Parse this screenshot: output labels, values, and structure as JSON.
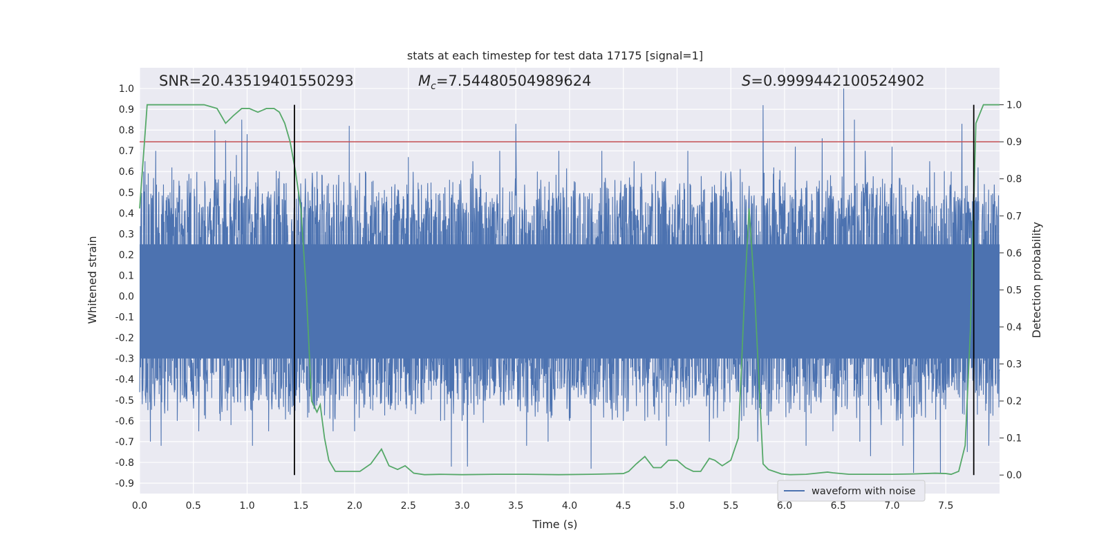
{
  "chart_data": {
    "type": "line",
    "title": "stats at each timestep for test data 17175 [signal=1]",
    "xlabel": "Time (s)",
    "ylabel_left": "Whitened strain",
    "ylabel_right": "Detection probability",
    "xlim": [
      0.0,
      8.0
    ],
    "ylim_left": [
      -0.95,
      1.1
    ],
    "ylim_right": [
      -0.05,
      1.1
    ],
    "xticks": [
      "0.0",
      "0.5",
      "1.0",
      "1.5",
      "2.0",
      "2.5",
      "3.0",
      "3.5",
      "4.0",
      "4.5",
      "5.0",
      "5.5",
      "6.0",
      "6.5",
      "7.0",
      "7.5"
    ],
    "yticks_left": [
      "1.0",
      "0.9",
      "0.8",
      "0.7",
      "0.6",
      "0.5",
      "0.4",
      "0.3",
      "0.2",
      "0.1",
      "0.0",
      "-0.1",
      "-0.2",
      "-0.3",
      "-0.4",
      "-0.5",
      "-0.6",
      "-0.7",
      "-0.8",
      "-0.9"
    ],
    "yticks_right": [
      "1.0",
      "0.9",
      "0.8",
      "0.7",
      "0.6",
      "0.5",
      "0.4",
      "0.3",
      "0.2",
      "0.1",
      "0.0"
    ],
    "grid": true,
    "legend_position": "lower-right",
    "annotations": {
      "snr": "SNR=20.43519401550293",
      "mc_symbol": "M",
      "mc_sub": "c",
      "mc_value": "=7.54480504989624",
      "s_symbol": "S",
      "s_value": "=0.9999442100524902"
    },
    "series": [
      {
        "name": "waveform with noise",
        "color": "#4c72b0",
        "axis": "left",
        "kind": "noise",
        "x_range": [
          0.0,
          8.0
        ],
        "envelope_low": [
          -0.45,
          -0.62
        ],
        "envelope_high": [
          0.45,
          0.62
        ],
        "peaks": [
          [
            0.05,
            0.65
          ],
          [
            0.1,
            -0.7
          ],
          [
            0.15,
            0.7
          ],
          [
            0.2,
            -0.72
          ],
          [
            0.3,
            0.62
          ],
          [
            0.35,
            -0.6
          ],
          [
            0.55,
            -0.65
          ],
          [
            0.7,
            0.8
          ],
          [
            0.75,
            -0.6
          ],
          [
            0.8,
            0.75
          ],
          [
            0.85,
            -0.62
          ],
          [
            0.9,
            0.68
          ],
          [
            0.95,
            0.85
          ],
          [
            1.0,
            0.78
          ],
          [
            1.05,
            -0.72
          ],
          [
            1.1,
            0.6
          ],
          [
            1.2,
            -0.65
          ],
          [
            1.3,
            0.6
          ],
          [
            1.4,
            -0.57
          ],
          [
            1.65,
            0.6
          ],
          [
            1.8,
            -0.65
          ],
          [
            1.9,
            0.55
          ],
          [
            1.95,
            0.82
          ],
          [
            2.0,
            -0.65
          ],
          [
            2.1,
            0.6
          ],
          [
            2.5,
            0.67
          ],
          [
            2.8,
            -0.6
          ],
          [
            2.9,
            -0.82
          ],
          [
            3.0,
            -0.6
          ],
          [
            3.05,
            -0.82
          ],
          [
            3.1,
            0.65
          ],
          [
            3.35,
            0.7
          ],
          [
            3.5,
            0.83
          ],
          [
            3.6,
            -0.72
          ],
          [
            3.7,
            0.6
          ],
          [
            3.8,
            -0.7
          ],
          [
            3.9,
            0.7
          ],
          [
            4.0,
            -0.6
          ],
          [
            4.2,
            -0.83
          ],
          [
            4.3,
            0.7
          ],
          [
            4.5,
            -0.6
          ],
          [
            4.6,
            0.65
          ],
          [
            4.7,
            -0.6
          ],
          [
            4.8,
            0.6
          ],
          [
            4.9,
            -0.72
          ],
          [
            5.1,
            0.7
          ],
          [
            5.3,
            -0.7
          ],
          [
            5.5,
            0.6
          ],
          [
            5.6,
            -0.6
          ],
          [
            5.75,
            -0.7
          ],
          [
            5.8,
            0.92
          ],
          [
            5.85,
            -0.62
          ],
          [
            5.9,
            0.62
          ],
          [
            6.1,
            0.72
          ],
          [
            6.2,
            -0.72
          ],
          [
            6.35,
            0.76
          ],
          [
            6.45,
            -0.65
          ],
          [
            6.55,
            1.0
          ],
          [
            6.65,
            0.85
          ],
          [
            6.7,
            -0.7
          ],
          [
            6.75,
            0.7
          ],
          [
            6.8,
            -0.77
          ],
          [
            6.9,
            -0.62
          ],
          [
            7.0,
            0.72
          ],
          [
            7.1,
            -0.72
          ],
          [
            7.2,
            -0.85
          ],
          [
            7.35,
            0.65
          ],
          [
            7.45,
            -0.85
          ],
          [
            7.55,
            0.6
          ],
          [
            7.65,
            0.83
          ],
          [
            7.7,
            -0.75
          ],
          [
            7.8,
            0.62
          ],
          [
            7.9,
            -0.72
          ]
        ]
      },
      {
        "name": "",
        "color": "#55a868",
        "axis": "right",
        "kind": "line",
        "x": [
          0.0,
          0.07,
          0.15,
          0.3,
          0.45,
          0.6,
          0.72,
          0.8,
          0.87,
          0.95,
          1.02,
          1.1,
          1.18,
          1.25,
          1.3,
          1.35,
          1.4,
          1.45,
          1.5,
          1.55,
          1.6,
          1.65,
          1.68,
          1.72,
          1.76,
          1.82,
          1.88,
          1.95,
          2.05,
          2.15,
          2.25,
          2.32,
          2.4,
          2.47,
          2.55,
          2.65,
          2.8,
          3.0,
          3.3,
          3.6,
          3.9,
          4.2,
          4.5,
          4.55,
          4.62,
          4.7,
          4.78,
          4.85,
          4.92,
          5.0,
          5.08,
          5.15,
          5.22,
          5.3,
          5.35,
          5.42,
          5.5,
          5.57,
          5.63,
          5.67,
          5.72,
          5.8,
          5.85,
          5.9,
          5.97,
          6.05,
          6.2,
          6.4,
          6.45,
          6.6,
          6.8,
          7.0,
          7.2,
          7.4,
          7.5,
          7.55,
          7.62,
          7.68,
          7.73,
          7.78,
          7.85,
          7.92,
          8.0
        ],
        "y": [
          0.72,
          1.0,
          1.0,
          1.0,
          1.0,
          1.0,
          0.99,
          0.95,
          0.97,
          0.99,
          0.99,
          0.98,
          0.99,
          0.99,
          0.98,
          0.95,
          0.9,
          0.82,
          0.72,
          0.5,
          0.2,
          0.17,
          0.19,
          0.1,
          0.04,
          0.01,
          0.01,
          0.01,
          0.01,
          0.03,
          0.07,
          0.025,
          0.015,
          0.025,
          0.005,
          0.001,
          0.002,
          0.001,
          0.002,
          0.002,
          0.001,
          0.002,
          0.004,
          0.01,
          0.03,
          0.05,
          0.02,
          0.02,
          0.04,
          0.04,
          0.02,
          0.01,
          0.01,
          0.045,
          0.04,
          0.025,
          0.04,
          0.1,
          0.5,
          0.72,
          0.5,
          0.03,
          0.015,
          0.01,
          0.003,
          0.001,
          0.002,
          0.008,
          0.006,
          0.002,
          0.002,
          0.002,
          0.003,
          0.005,
          0.004,
          0.002,
          0.01,
          0.08,
          0.4,
          0.95,
          1.0,
          1.0,
          1.0
        ]
      }
    ],
    "reference_lines": {
      "threshold_right_axis_value": 0.9,
      "threshold_color": "#c44e52",
      "vertical_lines_x": [
        1.44,
        7.76
      ],
      "vertical_line_color": "#000000"
    }
  }
}
